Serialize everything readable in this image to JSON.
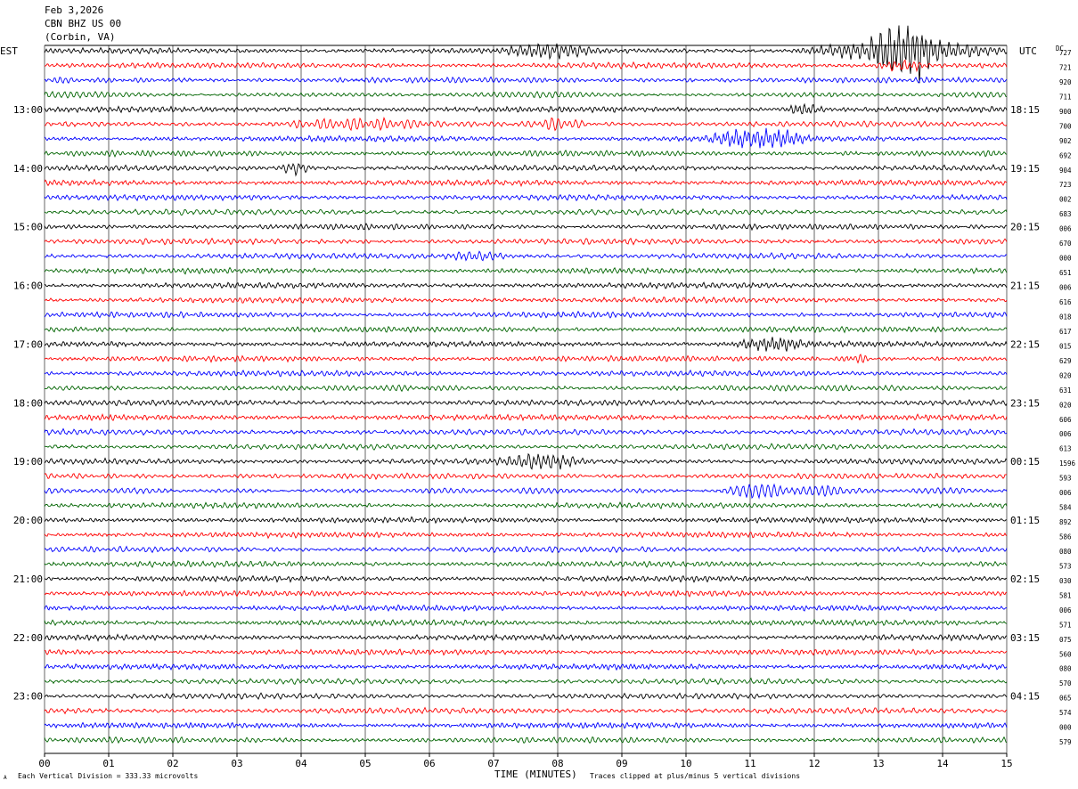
{
  "header": {
    "date": "Feb 3,2026",
    "station": "CBN BHZ US 00",
    "location": "(Corbin, VA)"
  },
  "labels": {
    "left_tz": "EST",
    "right_tz": "UTC",
    "dc": "DC",
    "x_title": "TIME (MINUTES)",
    "foot_left": "Each Vertical Division =  333.33 microvolts",
    "foot_right": "Traces clipped at plus/minus 5 vertical divisions",
    "corner_mark": "A"
  },
  "colors": {
    "black": "#000000",
    "red": "#ff0000",
    "blue": "#0000ff",
    "green": "#006400",
    "grid": "#000000"
  },
  "chart_data": {
    "type": "line",
    "title": "",
    "xlabel": "TIME (MINUTES)",
    "x_ticks": [
      "00",
      "01",
      "02",
      "03",
      "04",
      "05",
      "06",
      "07",
      "08",
      "09",
      "10",
      "11",
      "12",
      "13",
      "14",
      "15"
    ],
    "xlim": [
      0,
      15
    ],
    "trace_count": 48,
    "trace_color_cycle": [
      "black",
      "red",
      "blue",
      "green"
    ],
    "left_hour_labels": [
      "13:00",
      "14:00",
      "15:00",
      "16:00",
      "17:00",
      "18:00",
      "19:00",
      "20:00",
      "21:00",
      "22:00",
      "23:00"
    ],
    "right_hour_labels": [
      "18:15",
      "19:15",
      "20:15",
      "21:15",
      "22:15",
      "23:15",
      "00:15",
      "01:15",
      "02:15",
      "03:15",
      "04:15"
    ],
    "hour_label_first_trace": 4,
    "dc_values": [
      "727",
      "721",
      "920",
      "711",
      "900",
      "700",
      "902",
      "692",
      "904",
      "723",
      "002",
      "683",
      "006",
      "670",
      "000",
      "651",
      "006",
      "616",
      "018",
      "617",
      "015",
      "629",
      "020",
      "631",
      "020",
      "606",
      "006",
      "613",
      "1596",
      "593",
      "006",
      "584",
      "892",
      "586",
      "080",
      "573",
      "030",
      "581",
      "006",
      "571",
      "075",
      "560",
      "080",
      "570",
      "065",
      "574",
      "000",
      "579"
    ],
    "events": [
      {
        "trace": 0,
        "start_min": 7.1,
        "end_min": 8.7,
        "amp": 2.0
      },
      {
        "trace": 0,
        "start_min": 11.6,
        "end_min": 15.0,
        "amp": 3.0
      },
      {
        "trace": 0,
        "start_min": 12.8,
        "end_min": 14.0,
        "amp": 8.0
      },
      {
        "trace": 1,
        "start_min": 12.9,
        "end_min": 13.8,
        "amp": 1.8
      },
      {
        "trace": 4,
        "start_min": 11.5,
        "end_min": 12.2,
        "amp": 1.8
      },
      {
        "trace": 5,
        "start_min": 3.5,
        "end_min": 6.2,
        "amp": 1.6
      },
      {
        "trace": 5,
        "start_min": 7.5,
        "end_min": 8.5,
        "amp": 2.2
      },
      {
        "trace": 6,
        "start_min": 10.2,
        "end_min": 12.0,
        "amp": 3.0
      },
      {
        "trace": 8,
        "start_min": 3.6,
        "end_min": 4.2,
        "amp": 1.8
      },
      {
        "trace": 14,
        "start_min": 6.2,
        "end_min": 7.3,
        "amp": 1.5
      },
      {
        "trace": 20,
        "start_min": 10.7,
        "end_min": 12.0,
        "amp": 2.0
      },
      {
        "trace": 21,
        "start_min": 12.4,
        "end_min": 12.9,
        "amp": 1.5
      },
      {
        "trace": 28,
        "start_min": 7.0,
        "end_min": 8.5,
        "amp": 2.2
      },
      {
        "trace": 30,
        "start_min": 10.5,
        "end_min": 12.5,
        "amp": 3.0
      }
    ]
  }
}
